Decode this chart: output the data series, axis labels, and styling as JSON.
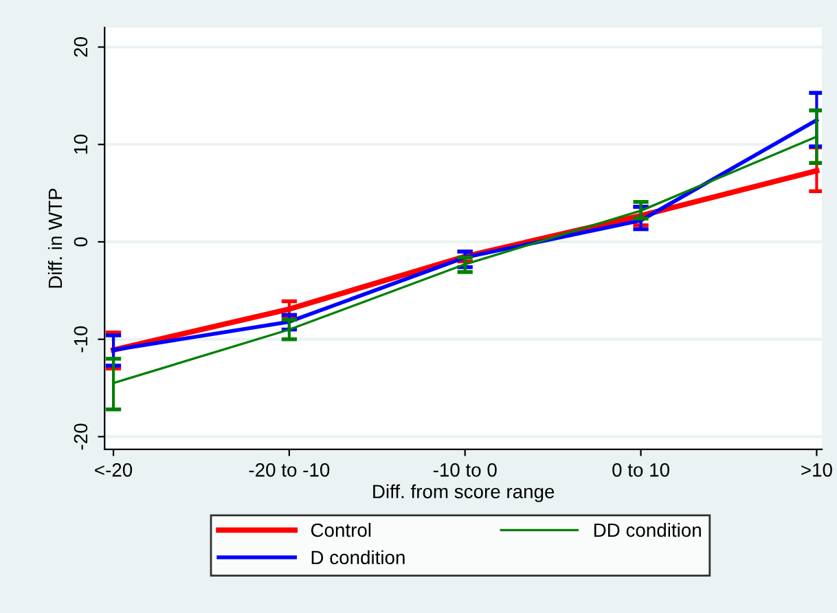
{
  "chart_data": {
    "type": "line",
    "xlabel": "Diff. from score range",
    "ylabel": "Diff. in WTP",
    "categories": [
      "<-20",
      "-20 to -10",
      "-10 to 0",
      "0 to 10",
      ">10"
    ],
    "ylim": [
      -21.3,
      22
    ],
    "yticks": [
      -20,
      -10,
      0,
      10,
      20
    ],
    "grid": "y",
    "legend": "bottom",
    "marker": "none",
    "line_style": "solid",
    "series": [
      {
        "name": "Control",
        "color": "#ff0000",
        "values": [
          -11.1,
          -6.9,
          -1.5,
          2.7,
          7.3
        ],
        "errors": [
          [
            -13.0,
            -9.3
          ],
          [
            -7.7,
            -6.1
          ],
          [
            -2.0,
            -1.0
          ],
          [
            1.7,
            3.6
          ],
          [
            5.2,
            9.7
          ]
        ]
      },
      {
        "name": "D condition",
        "color": "#0000ff",
        "values": [
          -11.1,
          -8.2,
          -1.6,
          2.2,
          12.5
        ],
        "errors": [
          [
            -12.7,
            -9.6
          ],
          [
            -9.0,
            -7.5
          ],
          [
            -2.6,
            -1.0
          ],
          [
            1.3,
            3.6
          ],
          [
            9.8,
            15.3
          ]
        ]
      },
      {
        "name": "DD condition",
        "color": "#008000",
        "values": [
          -14.5,
          -9.0,
          -2.3,
          3.2,
          10.8
        ],
        "errors": [
          [
            -17.2,
            -12.0
          ],
          [
            -10.0,
            -8.0
          ],
          [
            -3.1,
            -1.6
          ],
          [
            2.4,
            4.1
          ],
          [
            8.1,
            13.5
          ]
        ]
      }
    ]
  }
}
